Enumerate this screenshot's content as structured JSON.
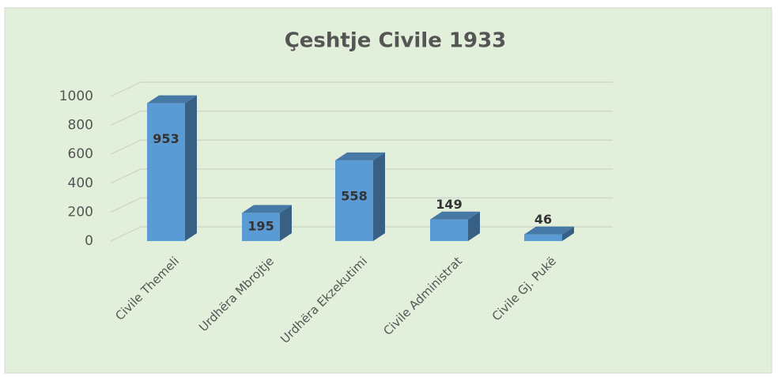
{
  "chart_data": {
    "type": "bar3d",
    "title": "Çeshtje  Civile 1933",
    "categories": [
      "Civile Themeli",
      "Urdhëra Mbrojtje",
      "Urdhëra Ekzekutimi",
      "Civile  Administrat",
      "Civile Gj. Pukë"
    ],
    "values": [
      953,
      195,
      558,
      149,
      46
    ],
    "color": "#5b9bd5",
    "ylim": [
      0,
      1000
    ],
    "yticks": [
      0,
      200,
      400,
      600,
      800,
      1000
    ],
    "grid": true
  }
}
